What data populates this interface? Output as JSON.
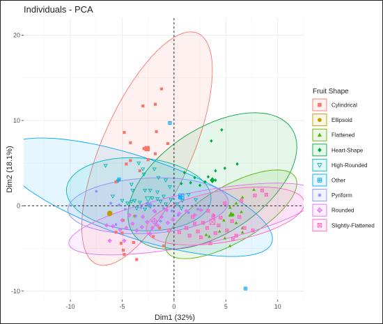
{
  "chart_data": {
    "type": "scatter",
    "title": "Individuals - PCA",
    "xlabel": "Dim1 (32%)",
    "ylabel": "Dim2 (18.1%)",
    "xlim": [
      -14.5,
      12.5
    ],
    "ylim": [
      -11,
      22
    ],
    "xticks": [
      -10,
      -5,
      0,
      5,
      10
    ],
    "yticks": [
      -10,
      0,
      10,
      20
    ],
    "grid": true,
    "reference_lines": {
      "x": 0,
      "y": 0,
      "style": "dashed"
    },
    "legend": {
      "title": "Fruit Shape",
      "placement": "right"
    },
    "series": [
      {
        "name": "Cylindrical",
        "color": "#f8766d",
        "marker": "square",
        "points": [
          [
            -1.2,
            13.7
          ],
          [
            -1.8,
            11.9
          ],
          [
            -3.0,
            11.7
          ],
          [
            -1.7,
            8.7
          ],
          [
            -4.8,
            8.6
          ],
          [
            -2.9,
            6.7
          ],
          [
            -2.5,
            5.4
          ],
          [
            -4.2,
            7.4
          ],
          [
            -1.8,
            6.1
          ],
          [
            -0.6,
            7.3
          ],
          [
            -4.6,
            4.9
          ],
          [
            -5.6,
            2.8
          ],
          [
            -4.2,
            5.3
          ],
          [
            -3.3,
            4.1
          ],
          [
            -5.1,
            -4.4
          ],
          [
            -5.0,
            -3.2
          ],
          [
            -4.9,
            -5.2
          ],
          [
            -5.6,
            -3.1
          ],
          [
            -3.9,
            -4.3
          ],
          [
            -2.0,
            -3.6
          ],
          [
            -1.4,
            -2.6
          ],
          [
            -3.6,
            -6.3
          ],
          [
            -4.8,
            -5.7
          ],
          [
            -1.0,
            -4.7
          ]
        ],
        "centroid": [
          -2.6,
          6.7
        ]
      },
      {
        "name": "Ellipsoid",
        "color": "#c49a00",
        "marker": "circle",
        "points": [
          [
            -3.8,
            -1.2
          ],
          [
            -4.9,
            -1.7
          ]
        ],
        "centroid": [
          -6.2,
          -0.9
        ]
      },
      {
        "name": "Flattened",
        "color": "#53b400",
        "marker": "triangle",
        "points": [
          [
            7.7,
            1.9
          ],
          [
            6.6,
            1.0
          ],
          [
            6.0,
            0.3
          ],
          [
            5.4,
            -0.2
          ],
          [
            5.7,
            -1.0
          ],
          [
            4.8,
            -1.7
          ],
          [
            6.6,
            -2.6
          ],
          [
            4.4,
            -3.0
          ],
          [
            3.4,
            -3.6
          ],
          [
            6.0,
            -2.0
          ],
          [
            6.6,
            -3.1
          ],
          [
            5.4,
            -4.7
          ],
          [
            3.1,
            -3.4
          ],
          [
            4.9,
            -3.8
          ],
          [
            6.5,
            -0.7
          ]
        ],
        "centroid": [
          5.5,
          -1.0
        ]
      },
      {
        "name": "Heart-Shape",
        "color": "#00a83a",
        "marker": "diamond",
        "points": [
          [
            4.6,
            8.9
          ],
          [
            3.6,
            7.6
          ],
          [
            6.1,
            4.9
          ],
          [
            4.9,
            4.4
          ],
          [
            4.0,
            4.1
          ],
          [
            3.3,
            3.4
          ],
          [
            4.0,
            3.0
          ],
          [
            1.0,
            3.9
          ],
          [
            2.5,
            2.4
          ],
          [
            0.7,
            2.6
          ],
          [
            2.0,
            3.3
          ],
          [
            1.6,
            2.7
          ],
          [
            3.0,
            2.8
          ]
        ],
        "centroid": [
          3.7,
          3.0
        ]
      },
      {
        "name": "High-Rounded",
        "color": "#00b8b0",
        "marker": "triangle-down",
        "points": [
          [
            -6.6,
            4.7
          ],
          [
            -3.4,
            5.0
          ],
          [
            -3.0,
            4.3
          ],
          [
            -2.9,
            3.7
          ],
          [
            -1.9,
            4.3
          ],
          [
            -1.5,
            3.3
          ],
          [
            -0.8,
            3.0
          ],
          [
            -2.3,
            1.8
          ],
          [
            -4.1,
            2.5
          ],
          [
            -5.4,
            2.9
          ],
          [
            -4.0,
            1.8
          ],
          [
            -5.9,
            1.1
          ],
          [
            -5.0,
            0.6
          ],
          [
            -4.5,
            0.3
          ],
          [
            -3.3,
            0.4
          ],
          [
            -2.5,
            0.1
          ],
          [
            -1.6,
            0.8
          ],
          [
            -1.0,
            1.1
          ],
          [
            -0.4,
            2.2
          ],
          [
            -1.3,
            0.5
          ],
          [
            -2.8,
            1.8
          ],
          [
            -2.1,
            0.9
          ],
          [
            -3.6,
            -0.3
          ],
          [
            -4.1,
            0.5
          ],
          [
            -3.8,
            0.6
          ],
          [
            -1.6,
            1.6
          ],
          [
            -2.3,
            -0.1
          ],
          [
            -0.8,
            0.2
          ],
          [
            -2.8,
            -0.4
          ],
          [
            1.4,
            1.3
          ],
          [
            0.8,
            0.6
          ],
          [
            2.1,
            0.7
          ],
          [
            0.3,
            0.2
          ],
          [
            -0.3,
            0.7
          ],
          [
            0.7,
            -0.3
          ]
        ],
        "centroid": [
          -2.5,
          0.8
        ]
      },
      {
        "name": "Other",
        "color": "#00a5ff",
        "marker": "square-cross",
        "points": [
          [
            -5.3,
            3.1
          ],
          [
            -0.4,
            9.7
          ],
          [
            0.6,
            1.0
          ],
          [
            6.9,
            -9.7
          ]
        ],
        "centroid": [
          0.7,
          1.1
        ]
      },
      {
        "name": "Pyriform",
        "color": "#8c8cff",
        "marker": "asterisk",
        "points": [
          [
            -7.5,
            1.7
          ],
          [
            -6.1,
            0.3
          ],
          [
            -5.3,
            0.1
          ],
          [
            -4.7,
            -0.4
          ],
          [
            -3.2,
            -0.2
          ],
          [
            -2.6,
            0.3
          ],
          [
            -1.8,
            -0.7
          ],
          [
            -1.0,
            -0.3
          ],
          [
            -0.2,
            -0.6
          ],
          [
            0.4,
            -1.1
          ],
          [
            1.4,
            -0.8
          ],
          [
            2.3,
            -0.4
          ],
          [
            -5.6,
            -2.2
          ],
          [
            -3.7,
            -1.2
          ],
          [
            -1.3,
            -1.8
          ]
        ],
        "centroid": [
          -2.3,
          0.1
        ]
      },
      {
        "name": "Rounded",
        "color": "#e76bf3",
        "marker": "diamond-plus",
        "points": [
          [
            -5.9,
            -2.4
          ],
          [
            -5.2,
            -2.8
          ],
          [
            -4.6,
            -2.6
          ],
          [
            -4.0,
            -2.1
          ],
          [
            -3.6,
            -2.9
          ],
          [
            -3.1,
            -2.5
          ],
          [
            -2.6,
            -1.9
          ],
          [
            -2.1,
            -2.6
          ],
          [
            -1.6,
            -2.3
          ],
          [
            -1.2,
            -1.3
          ],
          [
            -0.6,
            -2.0
          ],
          [
            -0.1,
            -1.6
          ],
          [
            0.5,
            -0.9
          ],
          [
            1.2,
            -0.6
          ],
          [
            2.0,
            -1.1
          ],
          [
            2.6,
            -0.5
          ],
          [
            -4.3,
            -1.1
          ],
          [
            -3.0,
            -1.3
          ],
          [
            -1.9,
            -0.6
          ],
          [
            -0.7,
            -0.5
          ],
          [
            -6.5,
            -2.3
          ],
          [
            -4.8,
            -4.1
          ],
          [
            -6.2,
            -4.1
          ],
          [
            -2.3,
            -3.3
          ],
          [
            -5.0,
            -1.7
          ],
          [
            3.8,
            -1.1
          ]
        ],
        "centroid": [
          -1.9,
          -1.8
        ]
      },
      {
        "name": "Slightly-Flattened",
        "color": "#ff62bc",
        "marker": "square-x",
        "points": [
          [
            8.5,
            1.8
          ],
          [
            8.9,
            1.3
          ],
          [
            7.8,
            1.2
          ],
          [
            6.5,
            0.6
          ],
          [
            4.9,
            0.3
          ],
          [
            3.3,
            -0.6
          ],
          [
            3.8,
            -1.3
          ],
          [
            2.8,
            -2.0
          ],
          [
            2.0,
            -2.1
          ],
          [
            4.3,
            -2.3
          ],
          [
            3.2,
            -2.6
          ],
          [
            5.1,
            -2.9
          ],
          [
            6.0,
            -3.5
          ],
          [
            6.8,
            -2.6
          ],
          [
            7.6,
            -2.9
          ],
          [
            1.5,
            -3.5
          ],
          [
            2.6,
            -3.7
          ],
          [
            3.5,
            -4.4
          ],
          [
            1.2,
            -2.6
          ],
          [
            4.5,
            -1.4
          ],
          [
            5.6,
            -1.8
          ],
          [
            2.3,
            -3.0
          ],
          [
            0.5,
            -3.1
          ],
          [
            4.0,
            -3.2
          ],
          [
            5.7,
            -3.9
          ],
          [
            1.8,
            -1.3
          ],
          [
            6.3,
            -1.3
          ],
          [
            -0.5,
            -2.9
          ]
        ],
        "centroid": [
          3.7,
          -1.9
        ]
      }
    ],
    "ellipses": [
      {
        "group": "Cylindrical",
        "cx": -2.6,
        "cy": 6.7,
        "rx": 14.4,
        "ry": 4.45,
        "angle_deg": 71
      },
      {
        "group": "Heart-Shape",
        "cx": 3.7,
        "cy": 2.9,
        "rx": 9.9,
        "ry": 5.7,
        "angle_deg": 44
      },
      {
        "group": "Flattened",
        "cx": 5.5,
        "cy": -1.0,
        "rx": 7.6,
        "ry": 3.1,
        "angle_deg": 37
      },
      {
        "group": "High-Rounded",
        "cx": -3.4,
        "cy": 1.35,
        "rx": 7.0,
        "ry": 4.25,
        "angle_deg": -6
      },
      {
        "group": "Other",
        "cx": -3.6,
        "cy": 1.0,
        "rx": 14.1,
        "ry": 4.6,
        "angle_deg": -23
      },
      {
        "group": "Pyriform",
        "cx": -2.5,
        "cy": 0.0,
        "rx": 7.75,
        "ry": 3.25,
        "angle_deg": 4
      },
      {
        "group": "Rounded",
        "cx": 1.9,
        "cy": -1.55,
        "rx": 12.4,
        "ry": 3.05,
        "angle_deg": 14
      },
      {
        "group": "Slightly-Flattened",
        "cx": 4.95,
        "cy": -1.2,
        "rx": 7.8,
        "ry": 3.0,
        "angle_deg": 13
      }
    ]
  }
}
